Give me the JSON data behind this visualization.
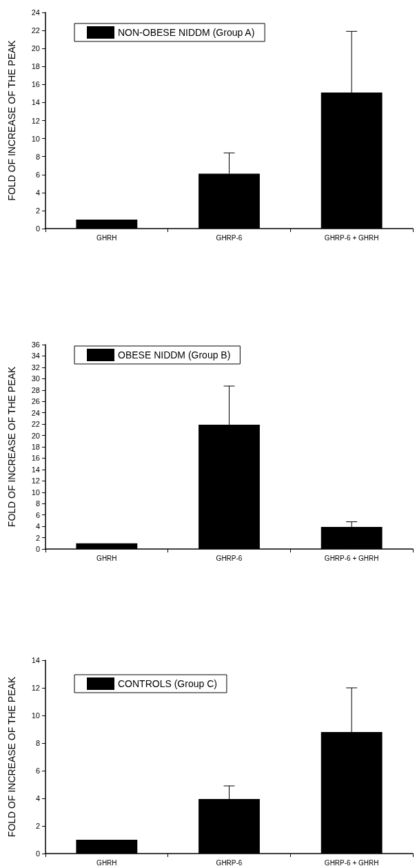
{
  "chart_data": [
    {
      "type": "bar",
      "ylabel": "FOLD OF INCREASE OF THE PEAK",
      "categories": [
        "GHRH",
        "GHRP-6",
        "GHRP-6 + GHRH"
      ],
      "series": [
        {
          "name": "NON-OBESE NIDDM (Group A)",
          "color": "#000000",
          "values": [
            1,
            6.1,
            15.1
          ],
          "errors": [
            null,
            [
              6.1,
              8.4
            ],
            [
              15.1,
              21.9
            ]
          ]
        }
      ],
      "ylim": [
        0,
        24
      ],
      "yticks": [
        0,
        2,
        4,
        6,
        8,
        10,
        12,
        14,
        16,
        18,
        20,
        22,
        24
      ],
      "legend": "top left",
      "grid": false
    },
    {
      "type": "bar",
      "ylabel": "FOLD OF INCREASE OF THE PEAK",
      "categories": [
        "GHRH",
        "GHRP-6",
        "GHRP-6 + GHRH"
      ],
      "series": [
        {
          "name": "OBESE NIDDM (Group B)",
          "color": "#000000",
          "values": [
            1,
            21.9,
            3.9
          ],
          "errors": [
            null,
            [
              21.9,
              28.7
            ],
            [
              3.9,
              4.8
            ]
          ]
        }
      ],
      "ylim": [
        0,
        36
      ],
      "yticks": [
        0,
        2,
        4,
        6,
        8,
        10,
        12,
        14,
        16,
        18,
        20,
        22,
        24,
        26,
        28,
        30,
        32,
        34,
        36
      ],
      "legend": "top left",
      "grid": false
    },
    {
      "type": "bar",
      "ylabel": "FOLD OF INCREASE OF THE PEAK",
      "categories": [
        "GHRH",
        "GHRP-6",
        "GHRP-6 + GHRH"
      ],
      "series": [
        {
          "name": "CONTROLS (Group C)",
          "color": "#000000",
          "values": [
            1,
            3.95,
            8.8
          ],
          "errors": [
            null,
            [
              3.95,
              4.9
            ],
            [
              8.8,
              12
            ]
          ]
        }
      ],
      "ylim": [
        0,
        14
      ],
      "yticks": [
        0,
        2,
        4,
        6,
        8,
        10,
        12,
        14
      ],
      "legend": "top left",
      "grid": false
    }
  ]
}
